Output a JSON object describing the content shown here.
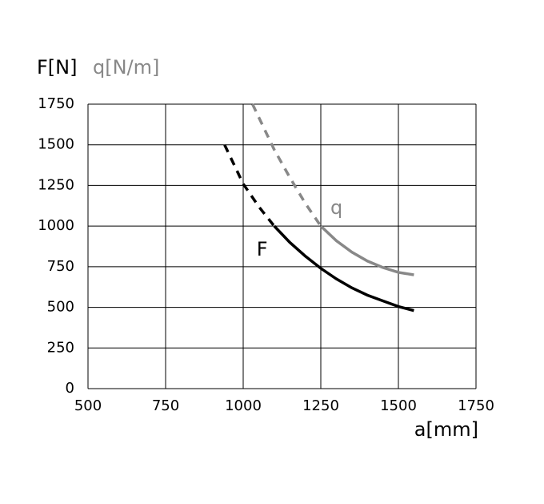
{
  "chart_data": {
    "type": "line",
    "ylabels": [
      {
        "text": "F[N]",
        "color": "#000000"
      },
      {
        "text": "q[N/m]",
        "color": "#888888"
      }
    ],
    "xlabel": "a[mm]",
    "xlim": [
      500,
      1750
    ],
    "xticks": [
      500,
      750,
      1000,
      1250,
      1500,
      1750
    ],
    "ylim": [
      0,
      1750
    ],
    "yticks": [
      0,
      250,
      500,
      750,
      1000,
      1250,
      1500,
      1750
    ],
    "grid": true,
    "series": [
      {
        "name": "F",
        "color": "#000000",
        "dash_end": 1100,
        "x": [
          940,
          1000,
          1050,
          1100,
          1150,
          1200,
          1250,
          1300,
          1350,
          1400,
          1450,
          1500,
          1550
        ],
        "values": [
          1500,
          1260,
          1120,
          1000,
          900,
          815,
          740,
          675,
          620,
          575,
          540,
          505,
          480
        ]
      },
      {
        "name": "q",
        "color": "#888888",
        "dash_end": 1250,
        "x": [
          1030,
          1100,
          1150,
          1200,
          1250,
          1300,
          1350,
          1400,
          1450,
          1500,
          1550
        ],
        "values": [
          1750,
          1470,
          1300,
          1140,
          1000,
          910,
          840,
          785,
          745,
          715,
          700
        ]
      }
    ]
  }
}
